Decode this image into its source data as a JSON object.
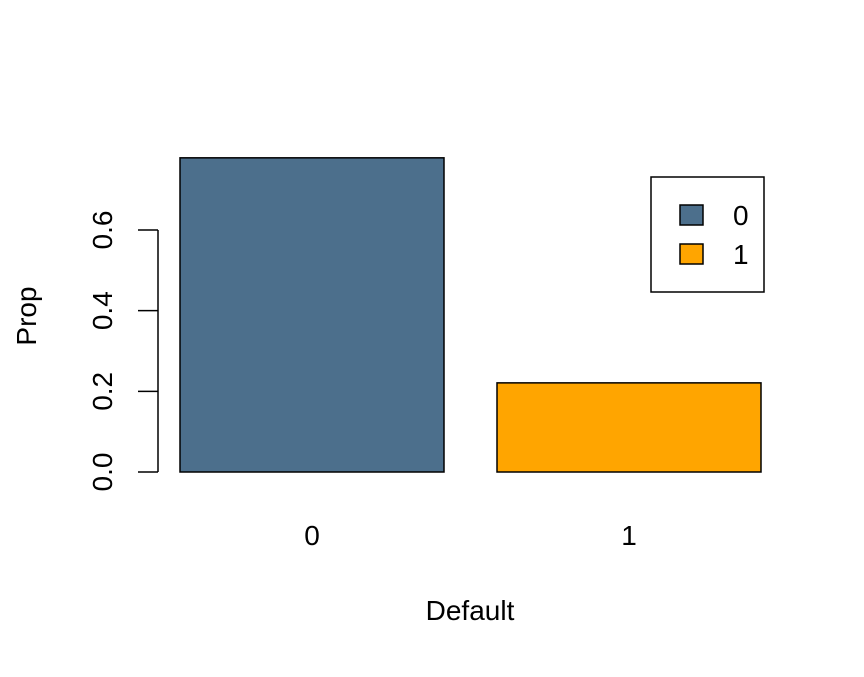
{
  "chart_data": {
    "type": "bar",
    "title": "",
    "xlabel": "Default",
    "ylabel": "Prop",
    "categories": [
      "0",
      "1"
    ],
    "values": [
      0.779,
      0.221
    ],
    "colors": [
      "#4C6F8C",
      "#FFA500"
    ],
    "yticks": [
      "0.0",
      "0.2",
      "0.4",
      "0.6"
    ],
    "ytick_values": [
      0.0,
      0.2,
      0.4,
      0.6
    ],
    "ylim": [
      0,
      0.779
    ],
    "grid": false,
    "legend": {
      "placement": "top-right",
      "entries": [
        {
          "label": "0",
          "color": "#4C6F8C"
        },
        {
          "label": "1",
          "color": "#FFA500"
        }
      ]
    }
  }
}
